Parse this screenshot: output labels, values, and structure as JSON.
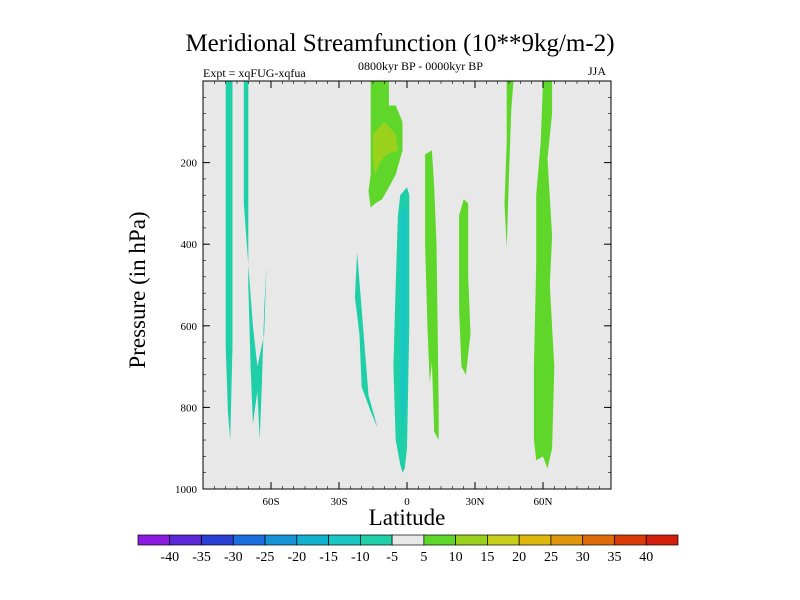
{
  "chart_data": {
    "type": "contour",
    "title": "Meridional Streamfunction (10**9kg/m-2)",
    "subtitle_left": "Expt = xqFUG-xqfua",
    "subtitle_center": "0800kyr BP - 0000kyr BP",
    "subtitle_right": "JJA",
    "xlabel": "Latitude",
    "ylabel": "Pressure (in hPa)",
    "xlim": [
      -90,
      90
    ],
    "ylim": [
      1000,
      0
    ],
    "x_ticks": [
      {
        "value": -60,
        "label": "60S"
      },
      {
        "value": -30,
        "label": "30S"
      },
      {
        "value": 0,
        "label": "0"
      },
      {
        "value": 30,
        "label": "30N"
      },
      {
        "value": 60,
        "label": "60N"
      }
    ],
    "y_ticks": [
      {
        "value": 200,
        "label": "200"
      },
      {
        "value": 400,
        "label": "400"
      },
      {
        "value": 600,
        "label": "600"
      },
      {
        "value": 800,
        "label": "800"
      },
      {
        "value": 1000,
        "label": "1000"
      }
    ],
    "colorbar": {
      "labels": [
        "-40",
        "-35",
        "-30",
        "-25",
        "-20",
        "-15",
        "-10",
        "-5",
        "5",
        "10",
        "15",
        "20",
        "25",
        "30",
        "35",
        "40"
      ],
      "colors": [
        "#8c1be0",
        "#5a28d6",
        "#2a3fd4",
        "#1a6ee0",
        "#1593d6",
        "#10b2d0",
        "#18c6c2",
        "#1ecfa8",
        "#e8e8e8",
        "#5fd62a",
        "#9ad11c",
        "#c8cf1a",
        "#dfb80e",
        "#e0950a",
        "#df6a08",
        "#d93a06",
        "#d41e0c"
      ]
    },
    "shaded_regions": [
      {
        "value": -7,
        "color": "#1ecfa8",
        "points": [
          [
            -80,
            0
          ],
          [
            -77,
            0
          ],
          [
            -77,
            650
          ],
          [
            -78,
            880
          ],
          [
            -79,
            810
          ],
          [
            -80,
            650
          ]
        ]
      },
      {
        "value": -7,
        "color": "#1ecfa8",
        "points": [
          [
            -72,
            0
          ],
          [
            -70,
            0
          ],
          [
            -70,
            500
          ],
          [
            -69,
            700
          ],
          [
            -68,
            840
          ],
          [
            -66,
            760
          ],
          [
            -65,
            880
          ],
          [
            -64,
            740
          ],
          [
            -63,
            560
          ],
          [
            -62,
            450
          ],
          [
            -63,
            620
          ],
          [
            -66,
            700
          ],
          [
            -68,
            600
          ],
          [
            -70,
            450
          ],
          [
            -72,
            300
          ]
        ]
      },
      {
        "value": -7,
        "color": "#1ecfa8",
        "points": [
          [
            -4,
            330
          ],
          [
            -3,
            280
          ],
          [
            0,
            260
          ],
          [
            1,
            280
          ],
          [
            1,
            600
          ],
          [
            0,
            900
          ],
          [
            -1,
            950
          ],
          [
            -2,
            960
          ],
          [
            -3,
            940
          ],
          [
            -5,
            880
          ],
          [
            -6,
            700
          ],
          [
            -5,
            500
          ]
        ]
      },
      {
        "value": -7,
        "color": "#1ecfa8",
        "points": [
          [
            -22,
            420
          ],
          [
            -20,
            560
          ],
          [
            -17,
            770
          ],
          [
            -14,
            830
          ],
          [
            -13,
            850
          ],
          [
            -16,
            810
          ],
          [
            -20,
            750
          ],
          [
            -21,
            620
          ],
          [
            -23,
            530
          ]
        ]
      },
      {
        "value": -12,
        "color": "#18c6c2",
        "points": [
          [
            -3,
            330
          ],
          [
            -1,
            300
          ],
          [
            0,
            340
          ],
          [
            0,
            700
          ],
          [
            -1,
            820
          ],
          [
            -2,
            860
          ],
          [
            -3,
            760
          ],
          [
            -3,
            550
          ]
        ]
      },
      {
        "value": 7,
        "color": "#5fd62a",
        "points": [
          [
            -16,
            0
          ],
          [
            -8,
            0
          ],
          [
            -8,
            60
          ],
          [
            -5,
            60
          ],
          [
            -2,
            100
          ],
          [
            -2,
            170
          ],
          [
            -5,
            230
          ],
          [
            -8,
            260
          ],
          [
            -11,
            290
          ],
          [
            -14,
            300
          ],
          [
            -16,
            310
          ],
          [
            -17,
            270
          ],
          [
            -16,
            230
          ],
          [
            -16,
            120
          ]
        ]
      },
      {
        "value": 7,
        "color": "#5fd62a",
        "points": [
          [
            8,
            180
          ],
          [
            11,
            170
          ],
          [
            12,
            260
          ],
          [
            13,
            400
          ],
          [
            14,
            800
          ],
          [
            14,
            880
          ],
          [
            12,
            860
          ],
          [
            11,
            690
          ],
          [
            10,
            740
          ],
          [
            9,
            600
          ],
          [
            8,
            400
          ]
        ]
      },
      {
        "value": 7,
        "color": "#5fd62a",
        "points": [
          [
            23,
            330
          ],
          [
            25,
            290
          ],
          [
            27,
            300
          ],
          [
            27,
            480
          ],
          [
            28,
            620
          ],
          [
            26,
            720
          ],
          [
            24,
            700
          ],
          [
            23,
            560
          ]
        ]
      },
      {
        "value": 7,
        "color": "#5fd62a",
        "points": [
          [
            44,
            0
          ],
          [
            47,
            0
          ],
          [
            46,
            70
          ],
          [
            45,
            230
          ],
          [
            44,
            410
          ],
          [
            43,
            300
          ],
          [
            44,
            150
          ]
        ]
      },
      {
        "value": 7,
        "color": "#5fd62a",
        "points": [
          [
            60,
            0
          ],
          [
            64,
            0
          ],
          [
            64,
            80
          ],
          [
            62,
            190
          ],
          [
            64,
            380
          ],
          [
            63,
            500
          ],
          [
            65,
            700
          ],
          [
            64,
            900
          ],
          [
            62,
            950
          ],
          [
            60,
            920
          ],
          [
            57,
            930
          ],
          [
            56,
            880
          ],
          [
            56,
            700
          ],
          [
            57,
            450
          ],
          [
            57,
            280
          ],
          [
            59,
            150
          ]
        ]
      },
      {
        "value": 12,
        "color": "#9ad11c",
        "points": [
          [
            -15,
            130
          ],
          [
            -10,
            100
          ],
          [
            -5,
            130
          ],
          [
            -4,
            170
          ],
          [
            -9,
            180
          ],
          [
            -12,
            200
          ],
          [
            -14,
            230
          ],
          [
            -15,
            190
          ]
        ]
      }
    ]
  }
}
